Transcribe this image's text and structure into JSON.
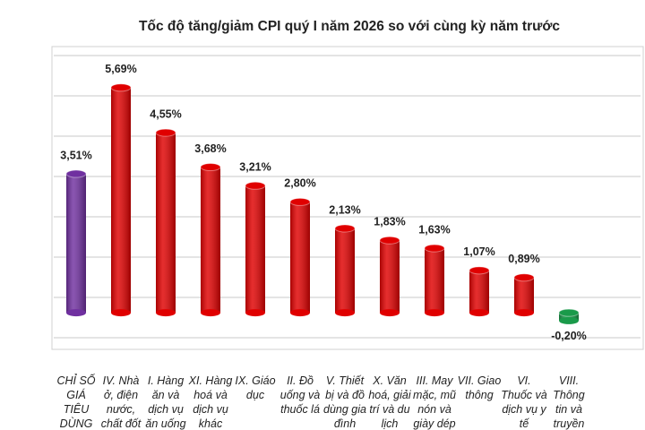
{
  "chart_data": {
    "type": "bar",
    "title": "Tốc độ tăng/giảm CPI quý I năm 2026 so với cùng kỳ năm trước",
    "categories": [
      "CHỈ SỐ GIÁ TIÊU DÙNG",
      "IV. Nhà ở, điện nước, chất đốt và VLXD",
      "I. Hàng ăn và dịch vụ ăn uống",
      "XI. Hàng hoá và dịch vụ khác",
      "IX. Giáo dục",
      "II. Đồ uống và thuốc lá",
      "V. Thiết bị và đồ dùng gia đình",
      "X. Văn hoá, giải trí và du lịch",
      "III. May mặc, mũ nón và giày dép",
      "VII. Giao thông",
      "VI. Thuốc và dịch vụ y tế",
      "VIII. Thông tin và truyền thông"
    ],
    "values": [
      3.51,
      5.69,
      4.55,
      3.68,
      3.21,
      2.8,
      2.13,
      1.83,
      1.63,
      1.07,
      0.89,
      -0.2
    ],
    "value_labels": [
      "3,51%",
      "5,69%",
      "4,55%",
      "3,68%",
      "3,21%",
      "2,80%",
      "2,13%",
      "1,83%",
      "1,63%",
      "1,07%",
      "0,89%",
      "-0,20%"
    ],
    "colors": [
      "#7030a0",
      "#e00000",
      "#e00000",
      "#e00000",
      "#e00000",
      "#e00000",
      "#e00000",
      "#e00000",
      "#e00000",
      "#e00000",
      "#e00000",
      "#1a9a4a"
    ],
    "ylim": [
      -0.7,
      6.5
    ]
  }
}
